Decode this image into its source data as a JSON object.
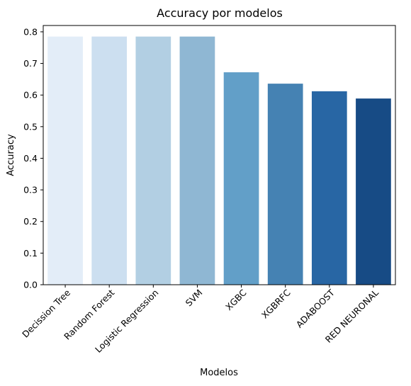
{
  "chart_data": {
    "type": "bar",
    "title": "Accuracy por modelos",
    "xlabel": "Modelos",
    "ylabel": "Accuracy",
    "categories": [
      "Decission Tree",
      "Random Forest",
      "Logistic Regression",
      "SVM",
      "XGBC",
      "XGBRFC",
      "ADABOOST",
      "RED NEURONAL"
    ],
    "values": [
      0.785,
      0.785,
      0.785,
      0.785,
      0.672,
      0.636,
      0.612,
      0.589
    ],
    "colors": [
      "#e3edf8",
      "#ccdff0",
      "#b2cfe3",
      "#8fb7d3",
      "#629fc8",
      "#4582b3",
      "#2866a4",
      "#174b85"
    ],
    "ylim": [
      0,
      0.82
    ],
    "yticks": [
      "0.0",
      "0.1",
      "0.2",
      "0.3",
      "0.4",
      "0.5",
      "0.6",
      "0.7",
      "0.8"
    ],
    "grid": false,
    "legend": "none"
  }
}
